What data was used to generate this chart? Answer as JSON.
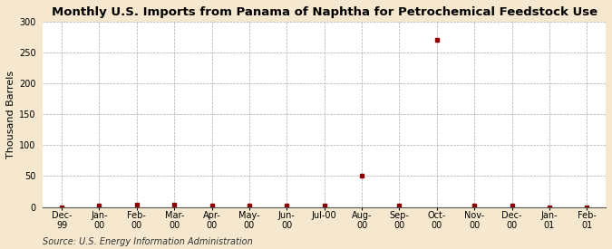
{
  "title": "Monthly U.S. Imports from Panama of Naphtha for Petrochemical Feedstock Use",
  "ylabel": "Thousand Barrels",
  "source": "Source: U.S. Energy Information Administration",
  "background_color": "#f5e8ce",
  "plot_background_color": "#ffffff",
  "x_labels": [
    "Dec-\n99",
    "Jan-\n00",
    "Feb-\n00",
    "Mar-\n00",
    "Apr-\n00",
    "May-\n00",
    "Jun-\n00",
    "Jul-00",
    "Aug-\n00",
    "Sep-\n00",
    "Oct-\n00",
    "Nov-\n00",
    "Dec-\n00",
    "Jan-\n01",
    "Feb-\n01"
  ],
  "x_indices": [
    0,
    1,
    2,
    3,
    4,
    5,
    6,
    7,
    8,
    9,
    10,
    11,
    12,
    13,
    14
  ],
  "y_values": [
    0,
    2,
    3,
    3,
    2,
    2,
    2,
    2,
    50,
    2,
    271,
    2,
    2,
    0,
    0
  ],
  "point_color": "#8b0000",
  "point_marker": "s",
  "point_size": 3,
  "ylim": [
    0,
    300
  ],
  "yticks": [
    0,
    50,
    100,
    150,
    200,
    250,
    300
  ],
  "grid_color": "#aaaaaa",
  "grid_style": "--",
  "title_fontsize": 9.5,
  "ylabel_fontsize": 8,
  "tick_fontsize": 7,
  "source_fontsize": 7
}
